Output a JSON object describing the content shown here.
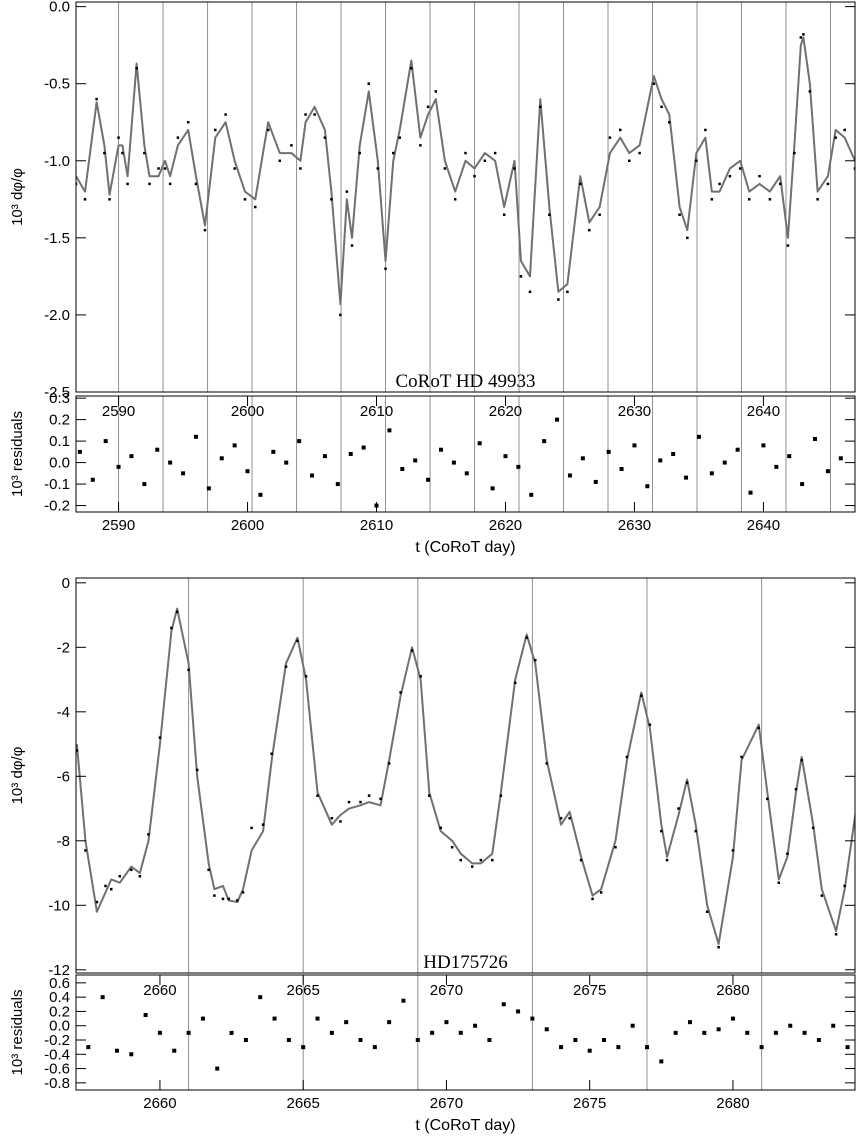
{
  "chart_data": [
    {
      "type": "line",
      "ylabel": "10³ dφ/φ",
      "annotation": "CoRoT HD 49933",
      "x": [
        2586.7,
        2587.4,
        2588.3,
        2588.9,
        2589.3,
        2590.0,
        2590.3,
        2590.7,
        2591.4,
        2592.0,
        2592.4,
        2593.1,
        2593.6,
        2594.0,
        2594.6,
        2595.4,
        2596.0,
        2596.7,
        2597.5,
        2598.3,
        2599.0,
        2599.8,
        2600.6,
        2601.6,
        2602.5,
        2603.4,
        2604.1,
        2604.5,
        2605.2,
        2606.0,
        2606.5,
        2607.2,
        2607.7,
        2608.1,
        2608.7,
        2609.4,
        2610.1,
        2610.7,
        2611.3,
        2611.8,
        2612.7,
        2613.4,
        2614.0,
        2614.6,
        2615.3,
        2616.1,
        2616.9,
        2617.6,
        2618.4,
        2619.2,
        2619.9,
        2620.7,
        2621.2,
        2621.9,
        2622.7,
        2623.4,
        2624.1,
        2624.8,
        2625.8,
        2626.5,
        2627.3,
        2628.1,
        2628.9,
        2629.6,
        2630.4,
        2631.5,
        2632.1,
        2632.7,
        2633.5,
        2634.1,
        2634.8,
        2635.5,
        2636.0,
        2636.6,
        2637.4,
        2638.2,
        2638.9,
        2639.7,
        2640.5,
        2641.3,
        2641.9,
        2642.4,
        2642.9,
        2643.1,
        2643.6,
        2644.2,
        2645.0,
        2645.6,
        2646.3,
        2647.1
      ],
      "series": [
        {
          "color": "#707070",
          "style": "line",
          "values": [
            -1.1,
            -1.2,
            -0.62,
            -0.9,
            -1.22,
            -0.9,
            -0.9,
            -1.1,
            -0.37,
            -0.9,
            -1.1,
            -1.1,
            -1.0,
            -1.1,
            -0.9,
            -0.8,
            -1.1,
            -1.42,
            -0.85,
            -0.75,
            -1.0,
            -1.2,
            -1.25,
            -0.75,
            -0.95,
            -0.95,
            -1.0,
            -0.75,
            -0.65,
            -0.8,
            -1.2,
            -1.93,
            -1.25,
            -1.5,
            -0.9,
            -0.55,
            -1.0,
            -1.65,
            -1.0,
            -0.8,
            -0.35,
            -0.85,
            -0.7,
            -0.6,
            -1.0,
            -1.2,
            -1.0,
            -1.05,
            -0.95,
            -1.0,
            -1.3,
            -1.0,
            -1.65,
            -1.75,
            -0.6,
            -1.3,
            -1.85,
            -1.8,
            -1.1,
            -1.4,
            -1.3,
            -0.95,
            -0.85,
            -0.95,
            -0.9,
            -0.45,
            -0.6,
            -0.7,
            -1.3,
            -1.45,
            -0.95,
            -0.85,
            -1.2,
            -1.2,
            -1.05,
            -1.0,
            -1.2,
            -1.15,
            -1.2,
            -1.1,
            -1.5,
            -0.9,
            -0.25,
            -0.2,
            -0.5,
            -1.2,
            -1.1,
            -0.8,
            -0.85,
            -1.0
          ]
        },
        {
          "color": "#000000",
          "style": "points",
          "values": [
            -1.15,
            -1.25,
            -0.6,
            -0.95,
            -1.25,
            -0.85,
            -0.95,
            -1.15,
            -0.4,
            -0.95,
            -1.15,
            -1.05,
            -1.05,
            -1.15,
            -0.85,
            -0.75,
            -1.15,
            -1.45,
            -0.8,
            -0.7,
            -1.05,
            -1.25,
            -1.3,
            -0.8,
            -1.0,
            -0.9,
            -1.05,
            -0.7,
            -0.7,
            -0.85,
            -1.25,
            -2.0,
            -1.2,
            -1.55,
            -0.95,
            -0.5,
            -1.05,
            -1.7,
            -0.95,
            -0.85,
            -0.4,
            -0.9,
            -0.65,
            -0.55,
            -1.05,
            -1.25,
            -0.95,
            -1.1,
            -1.0,
            -0.95,
            -1.35,
            -1.05,
            -1.75,
            -1.85,
            -0.65,
            -1.35,
            -1.9,
            -1.85,
            -1.15,
            -1.45,
            -1.35,
            -0.85,
            -0.8,
            -1.0,
            -0.95,
            -0.5,
            -0.65,
            -0.75,
            -1.35,
            -1.5,
            -1.0,
            -0.8,
            -1.25,
            -1.15,
            -1.1,
            -1.05,
            -1.25,
            -1.1,
            -1.25,
            -1.15,
            -1.55,
            -0.95,
            -0.2,
            -0.18,
            -0.55,
            -1.25,
            -1.15,
            -0.85,
            -0.8,
            -1.05
          ]
        }
      ],
      "xlim": [
        2586.7,
        2647.1
      ],
      "ylim": [
        -2.5,
        0.03
      ],
      "yticks": [
        {
          "value": 0,
          "label": "0.0"
        },
        -0.5,
        {
          "value": -1,
          "label": "-1.0"
        },
        -1.5,
        {
          "value": -2,
          "label": "-2.0"
        },
        -2.5
      ],
      "vlines": [
        2590.0,
        2593.45,
        2596.9,
        2600.35,
        2603.8,
        2607.25,
        2610.7,
        2614.15,
        2617.6,
        2621.05,
        2624.5,
        2627.95,
        2631.4,
        2634.85,
        2638.3,
        2641.75,
        2645.2
      ],
      "vline_color": "#909090"
    },
    {
      "type": "scatter",
      "ylabel": "10³ residuals",
      "xlabel": "t (CoRoT day)",
      "color": "#000000",
      "x": [
        2587,
        2588,
        2589,
        2590,
        2591,
        2592,
        2593,
        2594,
        2595,
        2596,
        2597,
        2598,
        2599,
        2600,
        2601,
        2602,
        2603,
        2604,
        2605,
        2606,
        2607,
        2608,
        2609,
        2610,
        2611,
        2612,
        2613,
        2614,
        2615,
        2616,
        2617,
        2618,
        2619,
        2620,
        2621,
        2622,
        2623,
        2624,
        2625,
        2626,
        2627,
        2628,
        2629,
        2630,
        2631,
        2632,
        2633,
        2634,
        2635,
        2636,
        2637,
        2638,
        2639,
        2640,
        2641,
        2642,
        2643,
        2644,
        2645,
        2646
      ],
      "values": [
        0.05,
        -0.08,
        0.1,
        -0.02,
        0.03,
        -0.1,
        0.06,
        0.0,
        -0.05,
        0.12,
        -0.12,
        0.02,
        0.08,
        -0.04,
        -0.15,
        0.05,
        0.0,
        0.1,
        -0.06,
        0.03,
        -0.1,
        0.04,
        0.07,
        -0.2,
        0.15,
        -0.03,
        0.01,
        -0.08,
        0.06,
        0.0,
        -0.05,
        0.09,
        -0.12,
        0.03,
        -0.02,
        -0.15,
        0.1,
        0.2,
        -0.06,
        0.02,
        -0.09,
        0.05,
        -0.03,
        0.08,
        -0.11,
        0.01,
        0.04,
        -0.07,
        0.12,
        -0.05,
        0.0,
        0.06,
        -0.14,
        0.08,
        -0.02,
        0.03,
        -0.1,
        0.11,
        -0.04,
        0.02
      ],
      "xlim": [
        2586.7,
        2647.1
      ],
      "ylim": [
        -0.23,
        0.31
      ],
      "xticks": [
        2590,
        2600,
        2610,
        2620,
        2630,
        2640
      ],
      "yticks": [
        0.3,
        0.2,
        0.1,
        {
          "value": 0,
          "label": "0.0"
        },
        -0.1,
        -0.2
      ],
      "vlines": [
        2590.0,
        2593.45,
        2596.9,
        2600.35,
        2603.8,
        2607.25,
        2610.7,
        2614.15,
        2617.6,
        2621.05,
        2624.5,
        2627.95,
        2631.4,
        2634.85,
        2638.3,
        2641.75,
        2645.2
      ],
      "vline_color": "#909090"
    },
    {
      "type": "line",
      "ylabel": "10³ dφ/φ",
      "annotation": "HD175726",
      "x": [
        2657.1,
        2657.4,
        2657.8,
        2658.1,
        2658.3,
        2658.6,
        2659.0,
        2659.3,
        2659.6,
        2660.0,
        2660.4,
        2660.6,
        2661.0,
        2661.3,
        2661.7,
        2661.9,
        2662.2,
        2662.4,
        2662.7,
        2662.9,
        2663.2,
        2663.6,
        2663.9,
        2664.4,
        2664.8,
        2665.1,
        2665.5,
        2666.0,
        2666.3,
        2666.6,
        2667.0,
        2667.3,
        2667.7,
        2668.0,
        2668.4,
        2668.8,
        2669.1,
        2669.4,
        2669.8,
        2670.2,
        2670.5,
        2670.9,
        2671.2,
        2671.6,
        2671.9,
        2672.4,
        2672.8,
        2673.1,
        2673.5,
        2674.0,
        2674.3,
        2674.7,
        2675.1,
        2675.4,
        2675.9,
        2676.3,
        2676.8,
        2677.1,
        2677.5,
        2677.7,
        2678.1,
        2678.4,
        2678.7,
        2679.1,
        2679.5,
        2680.0,
        2680.3,
        2680.9,
        2681.2,
        2681.6,
        2681.9,
        2682.2,
        2682.4,
        2682.8,
        2683.1,
        2683.6,
        2683.9,
        2684.3
      ],
      "series": [
        {
          "color": "#707070",
          "style": "line",
          "values": [
            -5,
            -8,
            -10.2,
            -9.6,
            -9.2,
            -9.3,
            -8.8,
            -9.0,
            -8.0,
            -5.0,
            -1.5,
            -0.8,
            -2.5,
            -6.0,
            -8.7,
            -9.5,
            -9.4,
            -9.85,
            -9.9,
            -9.5,
            -8.3,
            -7.7,
            -5.5,
            -2.5,
            -1.7,
            -3.0,
            -6.5,
            -7.5,
            -7.2,
            -7.0,
            -6.9,
            -6.8,
            -6.9,
            -5.5,
            -3.5,
            -2.0,
            -3.0,
            -6.5,
            -7.7,
            -8.0,
            -8.4,
            -8.7,
            -8.7,
            -8.4,
            -6.5,
            -3.0,
            -1.6,
            -2.5,
            -5.5,
            -7.5,
            -7.1,
            -8.5,
            -9.7,
            -9.5,
            -8.0,
            -5.5,
            -3.4,
            -4.5,
            -7.5,
            -8.5,
            -7.2,
            -6.1,
            -7.5,
            -10,
            -11.2,
            -8.5,
            -5.5,
            -4.4,
            -6.5,
            -9.2,
            -8.5,
            -6.5,
            -5.4,
            -7.5,
            -9.5,
            -10.8,
            -9.5,
            -7.0
          ]
        },
        {
          "color": "#000000",
          "style": "points",
          "values": [
            -5.2,
            -8.3,
            -9.9,
            -9.4,
            -9.5,
            -9.1,
            -8.9,
            -9.1,
            -7.8,
            -4.8,
            -1.4,
            -0.9,
            -2.7,
            -5.8,
            -8.9,
            -9.7,
            -9.8,
            -9.8,
            -9.85,
            -9.6,
            -7.6,
            -7.5,
            -5.3,
            -2.6,
            -1.8,
            -2.9,
            -6.6,
            -7.3,
            -7.4,
            -6.8,
            -6.8,
            -6.6,
            -6.7,
            -5.6,
            -3.4,
            -2.1,
            -2.9,
            -6.6,
            -7.6,
            -8.2,
            -8.6,
            -8.8,
            -8.6,
            -8.6,
            -6.6,
            -3.1,
            -1.7,
            -2.4,
            -5.6,
            -7.3,
            -7.3,
            -8.6,
            -9.8,
            -9.6,
            -8.2,
            -5.4,
            -3.5,
            -4.4,
            -7.7,
            -8.6,
            -7.0,
            -6.2,
            -7.7,
            -10.2,
            -11.3,
            -8.3,
            -5.4,
            -4.5,
            -6.7,
            -9.3,
            -8.4,
            -6.4,
            -5.5,
            -7.6,
            -9.7,
            -10.9,
            -9.4,
            -6.8
          ]
        }
      ],
      "xlim": [
        2657.07,
        2684.26
      ],
      "ylim": [
        -12.1,
        0.15
      ],
      "yticks": [
        0,
        -2,
        -4,
        -6,
        -8,
        -10,
        -12
      ],
      "vlines": [
        2661,
        2665,
        2669,
        2673,
        2677,
        2681
      ],
      "vline_color": "#909090"
    },
    {
      "type": "scatter",
      "ylabel": "10³ residuals",
      "xlabel": "t (CoRoT day)",
      "color": "#000000",
      "x": [
        2657.5,
        2658,
        2658.5,
        2659,
        2659.5,
        2660,
        2660.5,
        2661,
        2661.5,
        2662,
        2662.5,
        2663,
        2663.5,
        2664,
        2664.5,
        2665,
        2665.5,
        2666,
        2666.5,
        2667,
        2667.5,
        2668,
        2668.5,
        2669,
        2669.5,
        2670,
        2670.5,
        2671,
        2671.5,
        2672,
        2672.5,
        2673,
        2673.5,
        2674,
        2674.5,
        2675,
        2675.5,
        2676,
        2676.5,
        2677,
        2677.5,
        2678,
        2678.5,
        2679,
        2679.5,
        2680,
        2680.5,
        2681,
        2681.5,
        2682,
        2682.5,
        2683,
        2683.5,
        2684
      ],
      "values": [
        -0.3,
        0.4,
        -0.35,
        -0.4,
        0.15,
        -0.1,
        -0.35,
        -0.1,
        0.1,
        -0.6,
        -0.1,
        -0.2,
        0.4,
        0.1,
        -0.2,
        -0.3,
        0.1,
        -0.1,
        0.05,
        -0.2,
        -0.3,
        0.05,
        0.35,
        -0.2,
        -0.1,
        0.05,
        -0.1,
        0.0,
        -0.2,
        0.3,
        0.2,
        0.1,
        -0.05,
        -0.3,
        -0.2,
        -0.35,
        -0.2,
        -0.3,
        0.0,
        -0.3,
        -0.5,
        -0.1,
        0.05,
        -0.1,
        -0.05,
        0.1,
        -0.1,
        -0.3,
        -0.1,
        0.0,
        -0.1,
        -0.2,
        0.0,
        -0.3
      ],
      "xlim": [
        2657.07,
        2684.26
      ],
      "ylim": [
        -0.9,
        0.71
      ],
      "xticks": [
        2660,
        2665,
        2670,
        2675,
        2680
      ],
      "yticks": [
        0.6,
        0.4,
        0.2,
        {
          "value": 0,
          "label": "0.0"
        },
        -0.2,
        -0.4,
        -0.6,
        -0.8
      ],
      "vlines": [
        2661,
        2665,
        2669,
        2673,
        2677,
        2681
      ],
      "vline_color": "#909090"
    }
  ]
}
